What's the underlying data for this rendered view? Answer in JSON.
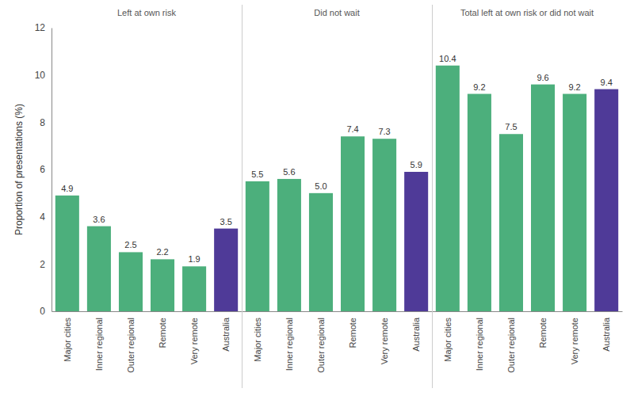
{
  "chart_data": [
    {
      "type": "bar",
      "title": "Left at own risk",
      "ylabel": "Proportion of presentations (%)",
      "categories": [
        "Major cities",
        "Inner regional",
        "Outer regional",
        "Remote",
        "Very remote",
        "Australia"
      ],
      "values": [
        4.9,
        3.6,
        2.5,
        2.2,
        1.9,
        3.5
      ],
      "colors": [
        "#4caf7c",
        "#4caf7c",
        "#4caf7c",
        "#4caf7c",
        "#4caf7c",
        "#4f3a98"
      ],
      "ylim": [
        0,
        12
      ],
      "yticks": [
        0,
        2,
        4,
        6,
        8,
        10,
        12
      ],
      "data_labels": true
    },
    {
      "type": "bar",
      "title": "Did not wait",
      "categories": [
        "Major cities",
        "Inner regional",
        "Outer regional",
        "Remote",
        "Very remote",
        "Australia"
      ],
      "values": [
        5.5,
        5.6,
        5.0,
        7.4,
        7.3,
        5.9
      ],
      "value_labels": [
        "5.5",
        "5.6",
        "5.0",
        "7.4",
        "7.3",
        "5.9"
      ],
      "colors": [
        "#4caf7c",
        "#4caf7c",
        "#4caf7c",
        "#4caf7c",
        "#4caf7c",
        "#4f3a98"
      ],
      "ylim": [
        0,
        12
      ],
      "data_labels": true,
      "tick_labels": "x"
    },
    {
      "type": "bar",
      "title": "Total left at own risk or did not wait",
      "categories": [
        "Major cities",
        "Inner regional",
        "Outer regional",
        "Remote",
        "Very remote",
        "Australia"
      ],
      "values": [
        10.4,
        9.2,
        7.5,
        9.6,
        9.2,
        9.4
      ],
      "colors": [
        "#4caf7c",
        "#4caf7c",
        "#4caf7c",
        "#4caf7c",
        "#4caf7c",
        "#4f3a98"
      ],
      "ylim": [
        0,
        12
      ],
      "data_labels": true,
      "tick_labels": "x"
    }
  ]
}
